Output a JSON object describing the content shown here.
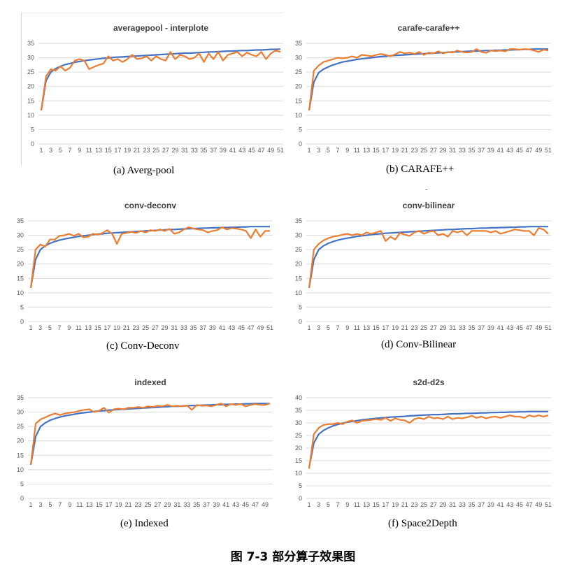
{
  "figure_caption": "图 7-3    部分算子效果图",
  "stray_mark": "-",
  "colors": {
    "blue": "#4472C4",
    "orange": "#ED7D31",
    "grid": "#D9D9D9"
  },
  "chart_data": [
    {
      "type": "line",
      "title": "averagepool - interplote",
      "caption": "(a)  Averg-pool",
      "xticks": [
        "1",
        "3",
        "5",
        "7",
        "9",
        "11",
        "13",
        "15",
        "17",
        "19",
        "21",
        "23",
        "25",
        "27",
        "29",
        "31",
        "33",
        "35",
        "37",
        "39",
        "41",
        "43",
        "45",
        "47",
        "49",
        "51"
      ],
      "ylim": [
        0,
        35
      ],
      "yticks": [
        "0",
        "5",
        "10",
        "15",
        "20",
        "25",
        "30",
        "35"
      ],
      "grid": "horizontal",
      "series": [
        {
          "color": "blue",
          "values": [
            11.7,
            22,
            25,
            26.2,
            27,
            27.6,
            28,
            28.4,
            28.7,
            29,
            29.2,
            29.4,
            29.6,
            29.8,
            29.9,
            30.1,
            30.2,
            30.3,
            30.4,
            30.5,
            30.6,
            30.7,
            30.8,
            30.9,
            31,
            31.1,
            31.2,
            31.3,
            31.4,
            31.5,
            31.6,
            31.6,
            31.7,
            31.8,
            31.9,
            32,
            32,
            32.1,
            32.2,
            32.3,
            32.3,
            32.4,
            32.5,
            32.5,
            32.6,
            32.7,
            32.7,
            32.8,
            32.9,
            32.9,
            33
          ]
        },
        {
          "color": "orange",
          "values": [
            11.7,
            23.5,
            26,
            25.5,
            27,
            25.5,
            26.5,
            29,
            29.5,
            29,
            26,
            26.8,
            27.5,
            28,
            30.5,
            29,
            29.5,
            28.5,
            29.5,
            31,
            29.5,
            29.8,
            30.5,
            29,
            30.5,
            29.5,
            29,
            32,
            29.5,
            31,
            30.5,
            29.5,
            30,
            31.5,
            28.5,
            31.5,
            29.5,
            32,
            29,
            31,
            31.5,
            32,
            30.5,
            31.8,
            31,
            30.5,
            32,
            29.5,
            31.5,
            32.5,
            32
          ]
        }
      ]
    },
    {
      "type": "line",
      "title": "carafe-carafe++",
      "caption": "(b)  CARAFE++",
      "xticks": [
        "1",
        "3",
        "5",
        "7",
        "9",
        "11",
        "13",
        "15",
        "17",
        "19",
        "21",
        "23",
        "25",
        "27",
        "29",
        "31",
        "33",
        "35",
        "37",
        "39",
        "41",
        "43",
        "45",
        "47",
        "49",
        "51"
      ],
      "ylim": [
        0,
        35
      ],
      "yticks": [
        "0",
        "5",
        "10",
        "15",
        "20",
        "25",
        "30",
        "35"
      ],
      "grid": "horizontal",
      "series": [
        {
          "color": "blue",
          "values": [
            11.7,
            21.5,
            24.8,
            26,
            26.8,
            27.5,
            28,
            28.5,
            28.8,
            29.1,
            29.4,
            29.6,
            29.8,
            30,
            30.2,
            30.4,
            30.5,
            30.7,
            30.8,
            30.9,
            31,
            31.1,
            31.2,
            31.3,
            31.4,
            31.5,
            31.6,
            31.7,
            31.8,
            31.9,
            32,
            32,
            32.1,
            32.2,
            32.3,
            32.3,
            32.4,
            32.5,
            32.5,
            32.6,
            32.6,
            32.7,
            32.7,
            32.8,
            32.8,
            32.9,
            32.9,
            33,
            33,
            33,
            33
          ]
        },
        {
          "color": "orange",
          "values": [
            11.7,
            25.5,
            27.3,
            28.5,
            29,
            29.5,
            30,
            29.8,
            30,
            30.5,
            30,
            31,
            30.8,
            30.5,
            31,
            31.3,
            31,
            30.5,
            31.2,
            32,
            31.5,
            31.8,
            31.3,
            32,
            31,
            31.8,
            31.5,
            32.2,
            31.5,
            32,
            31.8,
            32.5,
            32,
            31.8,
            32,
            33,
            32,
            31.7,
            32.5,
            32.3,
            32.5,
            32.2,
            33,
            33,
            32.8,
            33,
            32.9,
            32.5,
            32,
            32.8,
            32.5
          ]
        }
      ]
    },
    {
      "type": "line",
      "title": "conv-deconv",
      "caption": "(c)  Conv-Deconv",
      "xticks": [
        "1",
        "3",
        "5",
        "7",
        "9",
        "11",
        "13",
        "15",
        "17",
        "19",
        "21",
        "23",
        "25",
        "27",
        "29",
        "31",
        "33",
        "35",
        "37",
        "39",
        "41",
        "43",
        "45",
        "47",
        "49",
        "51"
      ],
      "ylim": [
        0,
        35
      ],
      "yticks": [
        "0",
        "5",
        "10",
        "15",
        "20",
        "25",
        "30",
        "35"
      ],
      "grid": "horizontal",
      "series": [
        {
          "color": "blue",
          "values": [
            11.7,
            21.5,
            25,
            26.3,
            27.2,
            27.8,
            28.3,
            28.7,
            29,
            29.3,
            29.6,
            29.8,
            30,
            30.2,
            30.4,
            30.5,
            30.7,
            30.8,
            30.9,
            31,
            31.1,
            31.2,
            31.3,
            31.4,
            31.5,
            31.6,
            31.7,
            31.8,
            31.9,
            32,
            32,
            32.1,
            32.2,
            32.3,
            32.3,
            32.4,
            32.5,
            32.5,
            32.6,
            32.6,
            32.7,
            32.7,
            32.8,
            32.8,
            32.9,
            32.9,
            33,
            33,
            33,
            33,
            33
          ]
        },
        {
          "color": "orange",
          "values": [
            11.7,
            25,
            26.8,
            26,
            28.5,
            28.5,
            29.8,
            30,
            30.5,
            29.8,
            30.5,
            29.3,
            29.5,
            30.5,
            30.2,
            30.8,
            31.8,
            30.5,
            27,
            30.5,
            30.8,
            31.2,
            30.8,
            31.5,
            31,
            31.8,
            31.5,
            32,
            31.5,
            32.2,
            30.5,
            31,
            32,
            32.8,
            32.3,
            32,
            31.8,
            31,
            31.5,
            31.8,
            32.8,
            32,
            32.5,
            32.3,
            32,
            31.5,
            29,
            32,
            29.5,
            31.5,
            31.5
          ]
        }
      ]
    },
    {
      "type": "line",
      "title": "conv-bilinear",
      "caption": "(d)  Conv-Bilinear",
      "xticks": [
        "1",
        "3",
        "5",
        "7",
        "9",
        "11",
        "13",
        "15",
        "17",
        "19",
        "21",
        "23",
        "25",
        "27",
        "29",
        "31",
        "33",
        "35",
        "37",
        "39",
        "41",
        "43",
        "45",
        "47",
        "49",
        "51"
      ],
      "ylim": [
        0,
        35
      ],
      "yticks": [
        "0",
        "5",
        "10",
        "15",
        "20",
        "25",
        "30",
        "35"
      ],
      "grid": "horizontal",
      "series": [
        {
          "color": "blue",
          "values": [
            11.7,
            21.5,
            25,
            26.3,
            27.2,
            27.8,
            28.3,
            28.7,
            29,
            29.3,
            29.6,
            29.8,
            30,
            30.2,
            30.4,
            30.5,
            30.7,
            30.8,
            30.9,
            31,
            31.1,
            31.2,
            31.3,
            31.4,
            31.5,
            31.6,
            31.7,
            31.8,
            31.9,
            32,
            32,
            32.1,
            32.2,
            32.3,
            32.3,
            32.4,
            32.5,
            32.5,
            32.6,
            32.6,
            32.7,
            32.7,
            32.8,
            32.8,
            32.9,
            32.9,
            33,
            33,
            33,
            33,
            33
          ]
        },
        {
          "color": "orange",
          "values": [
            11.7,
            25,
            27,
            28.2,
            29,
            29.5,
            29.8,
            30.2,
            30.5,
            30,
            30.5,
            30,
            31,
            30.5,
            31,
            31.5,
            28,
            29.5,
            28.5,
            30.8,
            30.2,
            29.8,
            31,
            31.5,
            30.5,
            31.2,
            31.5,
            30,
            30.5,
            29.5,
            31.5,
            31,
            31.5,
            30,
            31.5,
            31.5,
            31.5,
            31.5,
            31,
            31.5,
            30.5,
            31,
            31.5,
            32,
            31.8,
            31.5,
            31.5,
            30,
            32.5,
            32,
            30.5
          ]
        }
      ]
    },
    {
      "type": "line",
      "title": "indexed",
      "caption": "(e)  Indexed",
      "xticks": [
        "1",
        "3",
        "5",
        "7",
        "9",
        "11",
        "13",
        "15",
        "17",
        "19",
        "21",
        "23",
        "25",
        "27",
        "29",
        "31",
        "33",
        "35",
        "37",
        "39",
        "41",
        "43",
        "45",
        "47",
        "49"
      ],
      "ylim": [
        0,
        35
      ],
      "yticks": [
        "0",
        "5",
        "10",
        "15",
        "20",
        "25",
        "30",
        "35"
      ],
      "grid": "horizontal",
      "series": [
        {
          "color": "blue",
          "values": [
            11.7,
            21.5,
            25,
            26.3,
            27.2,
            27.8,
            28.3,
            28.7,
            29,
            29.3,
            29.6,
            29.8,
            30,
            30.2,
            30.4,
            30.5,
            30.7,
            30.8,
            30.9,
            31,
            31.1,
            31.2,
            31.3,
            31.4,
            31.5,
            31.6,
            31.7,
            31.8,
            31.9,
            32,
            32,
            32.1,
            32.2,
            32.3,
            32.3,
            32.4,
            32.5,
            32.5,
            32.6,
            32.6,
            32.7,
            32.7,
            32.8,
            32.8,
            32.9,
            32.9,
            33,
            33,
            33,
            33
          ]
        },
        {
          "color": "orange",
          "values": [
            11.7,
            26,
            27.5,
            28.2,
            29,
            29.5,
            29,
            29.5,
            29.8,
            30,
            30.5,
            30.8,
            31,
            30,
            30.5,
            31.5,
            29.8,
            31,
            31.2,
            31,
            31.5,
            31.5,
            31.8,
            31.5,
            32,
            31.8,
            32.2,
            32,
            32.5,
            32,
            32.2,
            32,
            32.3,
            30.8,
            32.5,
            32.2,
            32.3,
            32,
            32.5,
            33,
            32,
            32.8,
            32.5,
            32.8,
            32,
            32.5,
            32.8,
            32.5,
            32.5,
            33
          ]
        }
      ]
    },
    {
      "type": "line",
      "title": "s2d-d2s",
      "caption": "(f)  Space2Depth",
      "xticks": [
        "1",
        "3",
        "5",
        "7",
        "9",
        "11",
        "13",
        "15",
        "17",
        "19",
        "21",
        "23",
        "25",
        "27",
        "29",
        "31",
        "33",
        "35",
        "37",
        "39",
        "41",
        "43",
        "45",
        "47",
        "49",
        "51"
      ],
      "ylim": [
        0,
        40
      ],
      "yticks": [
        "0",
        "5",
        "10",
        "15",
        "20",
        "25",
        "30",
        "35",
        "40"
      ],
      "grid": "horizontal",
      "series": [
        {
          "color": "blue",
          "values": [
            12.3,
            22,
            25.5,
            27,
            28,
            28.8,
            29.4,
            29.9,
            30.3,
            30.6,
            30.9,
            31.2,
            31.4,
            31.6,
            31.8,
            32,
            32.1,
            32.3,
            32.4,
            32.5,
            32.6,
            32.8,
            32.9,
            33,
            33.1,
            33.2,
            33.3,
            33.3,
            33.4,
            33.5,
            33.6,
            33.6,
            33.7,
            33.8,
            33.8,
            33.9,
            34,
            34,
            34.1,
            34.1,
            34.2,
            34.2,
            34.3,
            34.3,
            34.4,
            34.4,
            34.5,
            34.5,
            34.5,
            34.5,
            34.5
          ]
        },
        {
          "color": "orange",
          "values": [
            11.8,
            25.5,
            28,
            29.2,
            29.5,
            29.5,
            30,
            29.5,
            30.5,
            31,
            30,
            30.8,
            31,
            31.2,
            31.5,
            31.2,
            32,
            30.8,
            31.8,
            31.2,
            31,
            30,
            31.5,
            32,
            31.5,
            32.5,
            31.8,
            32,
            31.5,
            32.5,
            31.5,
            32,
            31.8,
            32.2,
            32.8,
            32,
            32.5,
            31.8,
            32.3,
            32.5,
            32,
            32.5,
            33,
            32.5,
            32.5,
            32,
            33,
            32.5,
            33,
            32.5,
            33
          ]
        }
      ]
    }
  ]
}
